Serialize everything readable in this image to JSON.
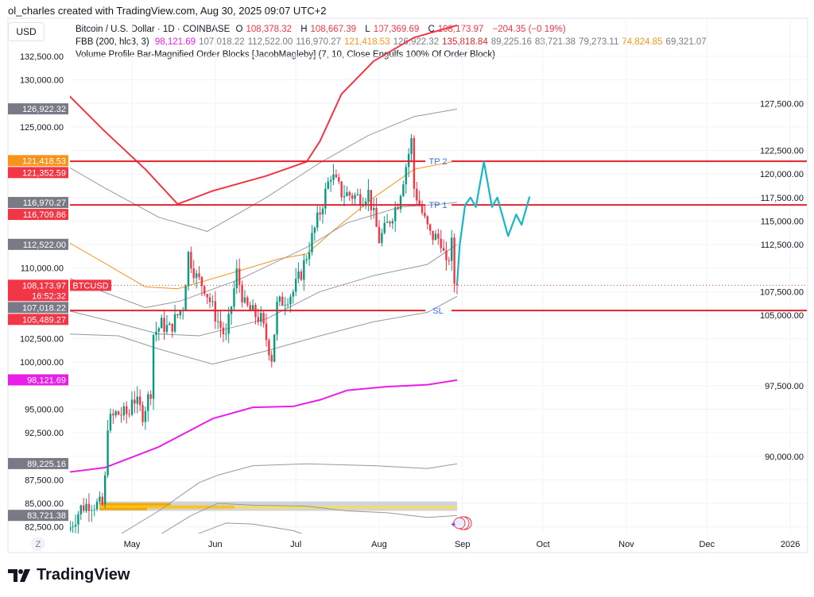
{
  "header": {
    "attribution": "ol_charles created with TradingView.com, Aug 30, 2025 09:07 UTC+2",
    "currency": "USD"
  },
  "legend": {
    "symbol": "Bitcoin / U.S. Dollar · 1D · COINBASE",
    "o_label": "O",
    "o": "108,378.32",
    "h_label": "H",
    "h": "108,667.39",
    "l_label": "L",
    "l": "107,369.69",
    "c_label": "C",
    "c": "108,173.97",
    "change": "−204.35 (−0.19%)",
    "fbb_name": "FBB (200, hlc3, 3)",
    "fbb_values": [
      "98,121.69",
      "107,018.22",
      "112,522.00",
      "116,970.27",
      "121,418.53",
      "126,922.32",
      "135,818.84",
      "89,225.16",
      "83,721.38",
      "79,273.11",
      "74,824.85",
      "69,321.07"
    ],
    "fbb_colors": [
      "#e91ee9",
      "#787b86",
      "#787b86",
      "#787b86",
      "#f7931a",
      "#787b86",
      "#e0232e",
      "#787b86",
      "#787b86",
      "#787b86",
      "#f7931a",
      "#787b86"
    ],
    "vp_name": "Volume Profile Bar-Magnified Order Blocks [JacobMagleby] (7, 10, Close Engulfs 100% Of Order Block)"
  },
  "chart_data": {
    "type": "candlestick",
    "symbol": "BTCUSD",
    "y_ticks": [
      "132,500.00",
      "130,000.00",
      "127,500.00",
      "125,000.00",
      "122,500.00",
      "120,000.00",
      "117,500.00",
      "115,000.00",
      "112,500.00",
      "110,000.00",
      "107,500.00",
      "105,000.00",
      "102,500.00",
      "100,000.00",
      "97,500.00",
      "95,000.00",
      "92,500.00",
      "90,000.00",
      "87,500.00",
      "85,000.00",
      "82,500.00"
    ],
    "y_tick_values": [
      132500,
      130000,
      127500,
      125000,
      122500,
      120000,
      117500,
      115000,
      112500,
      110000,
      107500,
      105000,
      102500,
      100000,
      97500,
      95000,
      92500,
      90000,
      87500,
      85000,
      82500
    ],
    "x_ticks": [
      "May",
      "Jun",
      "Jul",
      "Aug",
      "Sep",
      "Oct",
      "Nov",
      "Dec",
      "2026"
    ],
    "x_tick_days": [
      30,
      61,
      91,
      122,
      153,
      183,
      214,
      244,
      275
    ],
    "x_origin": "2025-04-01",
    "close_path": [
      [
        7,
        82500
      ],
      [
        11,
        84500
      ],
      [
        14,
        85000
      ],
      [
        19,
        84800
      ],
      [
        20,
        87500
      ],
      [
        21,
        93500
      ],
      [
        24,
        94500
      ],
      [
        29,
        94500
      ],
      [
        30,
        96500
      ],
      [
        34,
        94500
      ],
      [
        37,
        97000
      ],
      [
        38,
        103000
      ],
      [
        41,
        104000
      ],
      [
        44,
        103500
      ],
      [
        49,
        106000
      ],
      [
        51,
        111500
      ],
      [
        54,
        109000
      ],
      [
        57,
        108000
      ],
      [
        61,
        105000
      ],
      [
        65,
        102500
      ],
      [
        69,
        109500
      ],
      [
        72,
        106000
      ],
      [
        78,
        104500
      ],
      [
        82,
        100500
      ],
      [
        84,
        106000
      ],
      [
        90,
        107500
      ],
      [
        93,
        109500
      ],
      [
        100,
        116000
      ],
      [
        104,
        120000
      ],
      [
        108,
        118000
      ],
      [
        115,
        117500
      ],
      [
        118,
        118000
      ],
      [
        122,
        113000
      ],
      [
        124,
        114000
      ],
      [
        129,
        117000
      ],
      [
        134,
        123500
      ],
      [
        135,
        118500
      ],
      [
        139,
        115000
      ],
      [
        141,
        113500
      ],
      [
        145,
        113000
      ],
      [
        147,
        110000
      ],
      [
        149,
        112500
      ],
      [
        150,
        108500
      ],
      [
        151,
        108174
      ]
    ],
    "last": {
      "price": "108,173.97",
      "countdown": "16:52:32",
      "label": "BTCUSD",
      "value": 108173.97
    },
    "levels": [
      {
        "label": "TP 2",
        "price": 121352.59,
        "text": "121,352.59"
      },
      {
        "label": "TP 1",
        "price": 116709.86,
        "text": "116,709.86"
      },
      {
        "label": "SL",
        "price": 105489.27,
        "text": "105,489.27"
      }
    ],
    "band_badges": [
      {
        "text": "126,922.32",
        "price": 126922.32,
        "color": "#787b86"
      },
      {
        "text": "121,418.53",
        "price": 121418.53,
        "color": "#f7931a"
      },
      {
        "text": "116,970.27",
        "price": 116970.27,
        "color": "#787b86"
      },
      {
        "text": "112,522.00",
        "price": 112522.0,
        "color": "#787b86"
      },
      {
        "text": "107,018.22",
        "price": 107018.22,
        "color": "#787b86"
      },
      {
        "text": "98,121.69",
        "price": 98121.69,
        "color": "#e91ee9"
      },
      {
        "text": "89,225.16",
        "price": 89225.16,
        "color": "#787b86"
      },
      {
        "text": "83,721.38",
        "price": 83721.38,
        "color": "#787b86"
      }
    ],
    "bands": [
      {
        "color": "#f23645",
        "pts": [
          [
            6,
            128500
          ],
          [
            20,
            124500
          ],
          [
            35,
            120500
          ],
          [
            47,
            116800
          ],
          [
            60,
            118200
          ],
          [
            80,
            119800
          ],
          [
            95,
            121300
          ],
          [
            100,
            123500
          ],
          [
            108,
            128500
          ],
          [
            120,
            132000
          ],
          [
            135,
            134500
          ],
          [
            151,
            135800
          ]
        ]
      },
      {
        "color": "#e91ee9",
        "pts": [
          [
            6,
            88300
          ],
          [
            20,
            88800
          ],
          [
            40,
            91000
          ],
          [
            60,
            94000
          ],
          [
            75,
            95200
          ],
          [
            90,
            95300
          ],
          [
            100,
            96000
          ],
          [
            110,
            97000
          ],
          [
            125,
            97400
          ],
          [
            140,
            97600
          ],
          [
            151,
            98100
          ]
        ]
      },
      {
        "color": "#f7931a",
        "pts": [
          [
            6,
            112800
          ],
          [
            20,
            110500
          ],
          [
            35,
            108000
          ],
          [
            47,
            107800
          ],
          [
            65,
            109300
          ],
          [
            85,
            111000
          ],
          [
            95,
            111500
          ],
          [
            105,
            114000
          ],
          [
            120,
            117500
          ],
          [
            135,
            120500
          ],
          [
            151,
            121400
          ]
        ]
      },
      {
        "color": "#9598a1",
        "pts": [
          [
            6,
            120800
          ],
          [
            20,
            118500
          ],
          [
            40,
            115400
          ],
          [
            58,
            113900
          ],
          [
            80,
            117500
          ],
          [
            100,
            121200
          ],
          [
            118,
            124100
          ],
          [
            135,
            126100
          ],
          [
            151,
            126900
          ]
        ]
      },
      {
        "color": "#9598a1",
        "pts": [
          [
            6,
            109000
          ],
          [
            20,
            107400
          ],
          [
            35,
            105800
          ],
          [
            48,
            106500
          ],
          [
            70,
            108800
          ],
          [
            95,
            112200
          ],
          [
            110,
            114800
          ],
          [
            130,
            116500
          ],
          [
            145,
            116800
          ],
          [
            151,
            117000
          ]
        ]
      },
      {
        "color": "#9598a1",
        "pts": [
          [
            6,
            105500
          ],
          [
            20,
            104500
          ],
          [
            40,
            103000
          ],
          [
            55,
            102800
          ],
          [
            80,
            104600
          ],
          [
            100,
            107500
          ],
          [
            120,
            109200
          ],
          [
            140,
            110400
          ],
          [
            151,
            112500
          ]
        ]
      },
      {
        "color": "#9598a1",
        "pts": [
          [
            6,
            103000
          ],
          [
            25,
            102800
          ],
          [
            40,
            101400
          ],
          [
            60,
            99800
          ],
          [
            80,
            101200
          ],
          [
            100,
            102800
          ],
          [
            120,
            104300
          ],
          [
            140,
            105300
          ],
          [
            151,
            107000
          ]
        ]
      },
      {
        "color": "#9598a1",
        "pts": [
          [
            25,
            81600
          ],
          [
            40,
            84200
          ],
          [
            55,
            87200
          ],
          [
            62,
            88000
          ],
          [
            75,
            89000
          ],
          [
            95,
            89200
          ],
          [
            120,
            89000
          ],
          [
            140,
            88700
          ],
          [
            151,
            89200
          ]
        ]
      },
      {
        "color": "#9598a1",
        "pts": [
          [
            40,
            81600
          ],
          [
            52,
            83700
          ],
          [
            62,
            85000
          ],
          [
            75,
            84800
          ],
          [
            95,
            84700
          ],
          [
            110,
            84200
          ],
          [
            125,
            84000
          ],
          [
            140,
            83500
          ],
          [
            151,
            83700
          ]
        ]
      },
      {
        "color": "#9598a1",
        "pts": [
          [
            54,
            81700
          ],
          [
            65,
            82900
          ],
          [
            75,
            82800
          ],
          [
            90,
            82100
          ],
          [
            95,
            81600
          ]
        ]
      }
    ],
    "projection": [
      [
        151,
        108300
      ],
      [
        152,
        112500
      ],
      [
        154,
        116700
      ],
      [
        156,
        117500
      ],
      [
        158,
        116500
      ],
      [
        161,
        121300
      ],
      [
        164,
        116500
      ],
      [
        166,
        117500
      ],
      [
        170,
        113400
      ],
      [
        173,
        115700
      ],
      [
        175,
        114600
      ],
      [
        178,
        117600
      ]
    ],
    "volume_profile": {
      "top": 85200,
      "bottom": 84200
    }
  },
  "footer": {
    "brand": "TradingView",
    "z_label": "Z"
  }
}
